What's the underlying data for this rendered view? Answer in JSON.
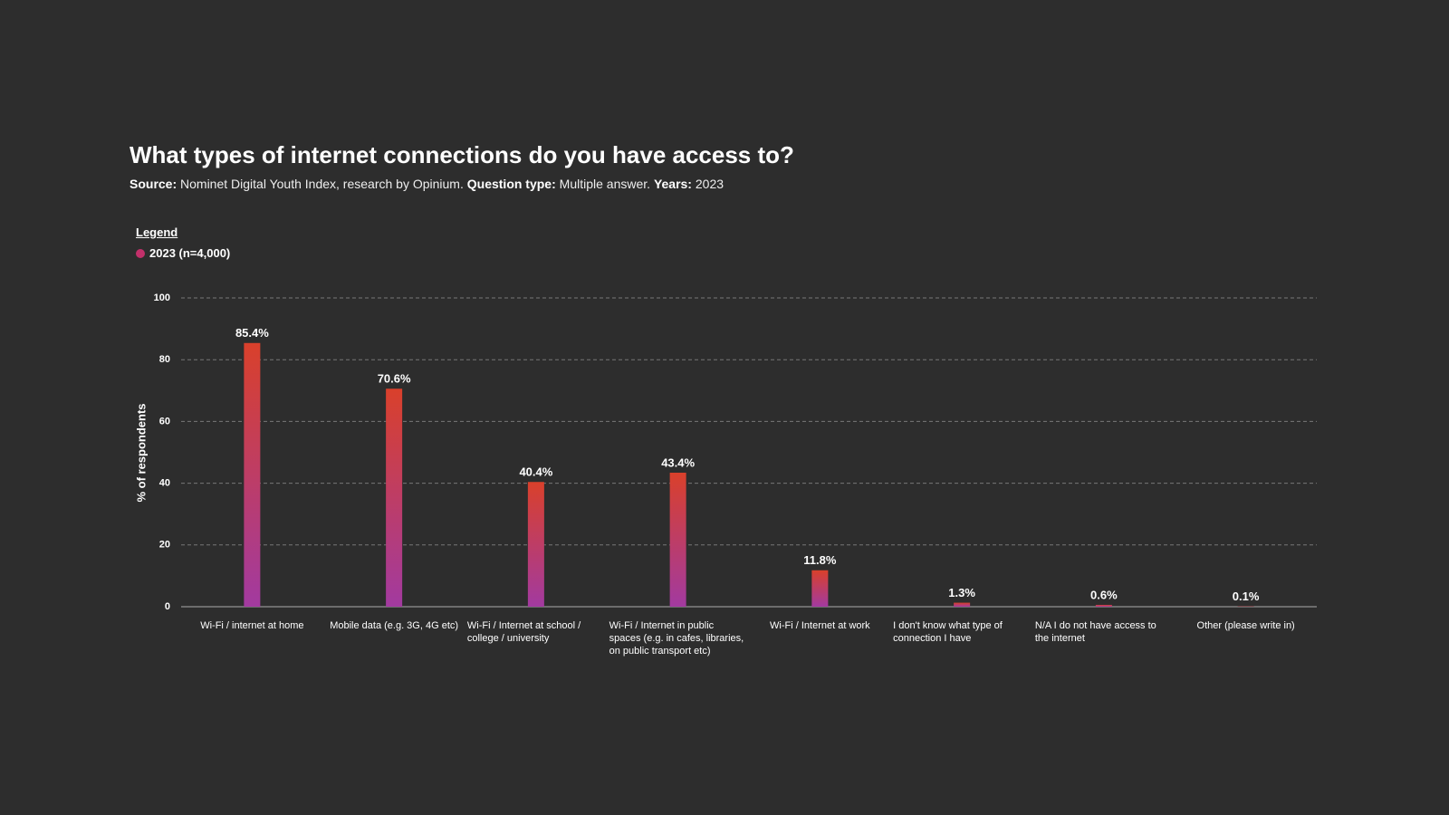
{
  "chart_data": {
    "type": "bar",
    "title": "What types of internet connections do you have access to?",
    "subtitle": [
      {
        "text": "Source:",
        "bold": true
      },
      {
        "text": "Nominet Digital Youth Index, research by Opinium.",
        "bold": false
      },
      {
        "text": "Question type:",
        "bold": true
      },
      {
        "text": "Multiple answer.",
        "bold": false
      },
      {
        "text": "Years:",
        "bold": true
      },
      {
        "text": "2023",
        "bold": false
      }
    ],
    "legend_title": "Legend",
    "ylabel": "% of respondents",
    "categories": [
      "Wi-Fi / internet at home",
      "Mobile data (e.g. 3G, 4G etc)",
      "Wi-Fi / Internet at school / college / university",
      "Wi-Fi / Internet in public spaces (e.g. in cafes, libraries, on public transport etc)",
      "Wi-Fi / Internet at work",
      "I don't know what type of connection I have",
      "N/A I do not have access to the internet",
      "Other (please write in)"
    ],
    "series": [
      {
        "name": "2023 (n=4,000)",
        "color": "#c2306a",
        "gradient": [
          "#d9402b",
          "#a23aa0"
        ],
        "values": [
          85.4,
          70.6,
          40.4,
          43.4,
          11.8,
          1.3,
          0.6,
          0.1
        ],
        "value_labels": [
          "85.4%",
          "70.6%",
          "40.4%",
          "43.4%",
          "11.8%",
          "1.3%",
          "0.6%",
          "0.1%"
        ]
      }
    ],
    "ylim": [
      0,
      100
    ],
    "yticks": [
      0,
      20,
      40,
      60,
      80,
      100
    ],
    "grid": true
  }
}
